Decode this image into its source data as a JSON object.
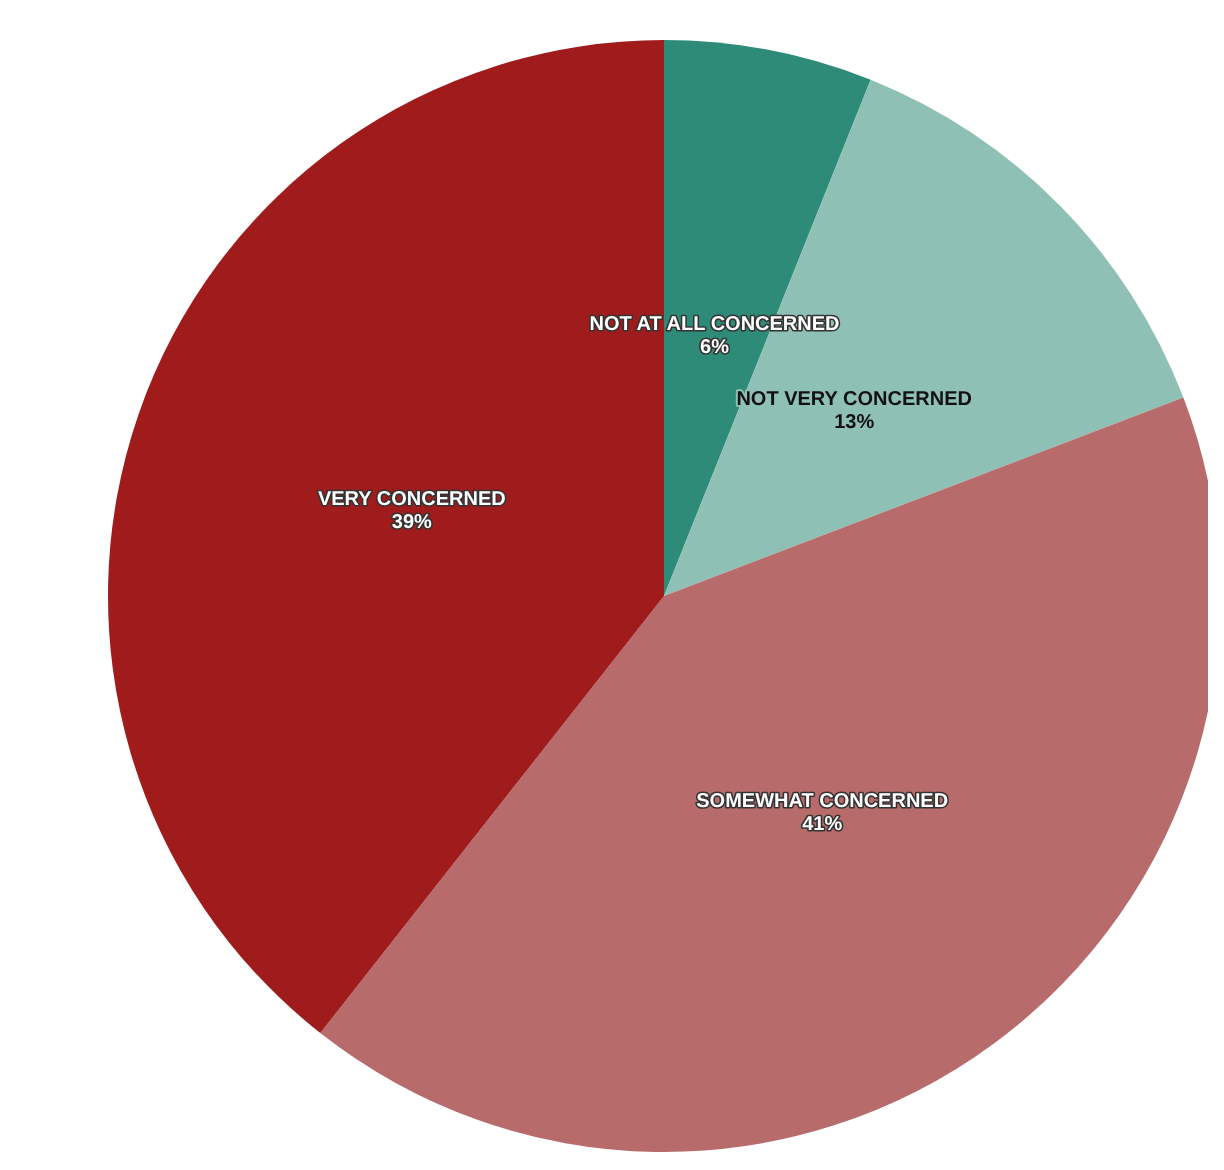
{
  "chart_data": {
    "type": "pie",
    "categories": [
      "NOT AT ALL CONCERNED",
      "NOT VERY CONCERNED",
      "SOMEWHAT CONCERNED",
      "VERY CONCERNED"
    ],
    "values": [
      6,
      13,
      41,
      39
    ],
    "value_labels": [
      "6%",
      "13%",
      "41%",
      "39%"
    ],
    "colors": [
      "#2e8b78",
      "#8fc0b5",
      "#b86b6b",
      "#a01c1c"
    ]
  }
}
